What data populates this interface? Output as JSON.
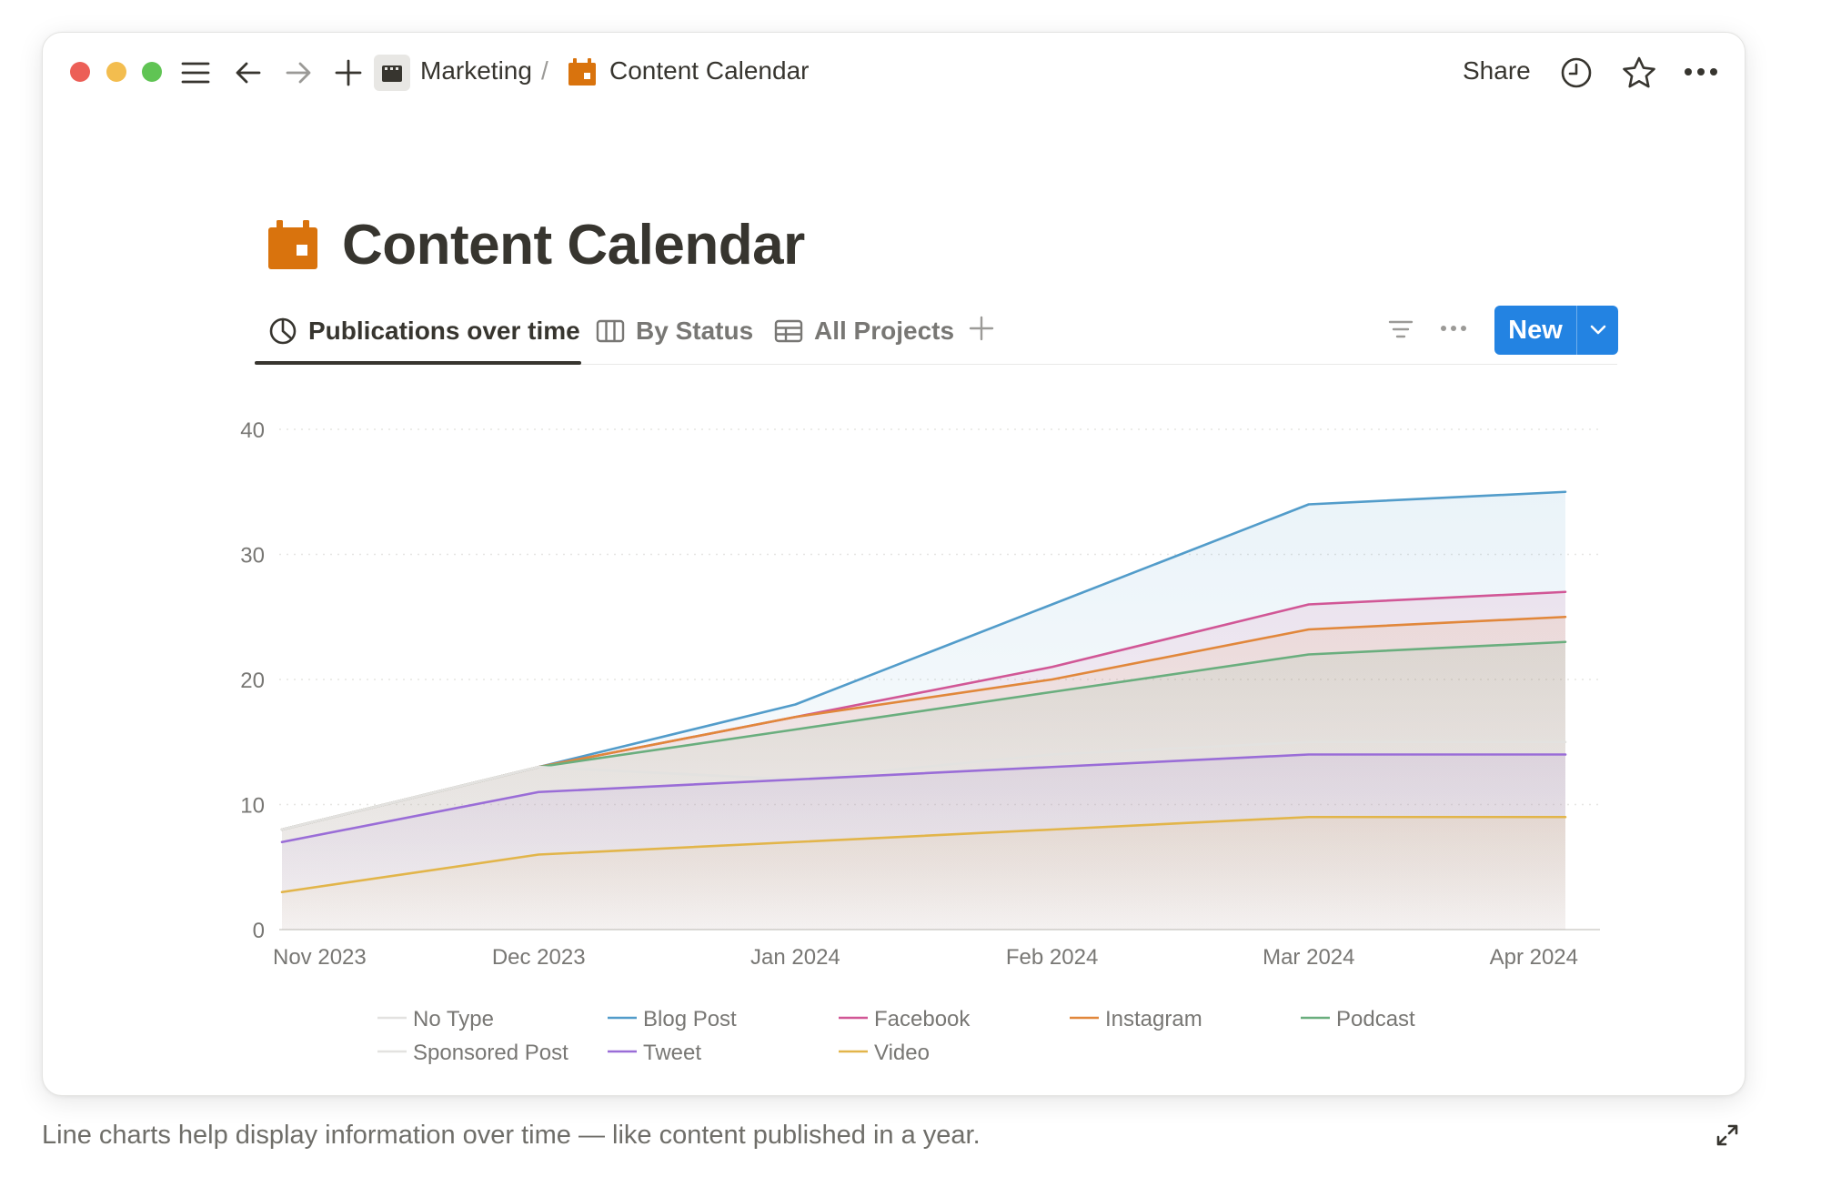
{
  "titlebar": {
    "breadcrumb_parent": "Marketing",
    "breadcrumb_separator": "/",
    "breadcrumb_current": "Content Calendar",
    "share_label": "Share"
  },
  "page": {
    "title": "Content Calendar",
    "icon_color": "#d9730d"
  },
  "tabs": [
    {
      "label": "Publications over time",
      "icon": "chart-clock-icon",
      "active": true
    },
    {
      "label": "By Status",
      "icon": "board-icon",
      "active": false
    },
    {
      "label": "All Projects",
      "icon": "table-icon",
      "active": false
    }
  ],
  "toolbar": {
    "new_label": "New",
    "accent": "#2383e2"
  },
  "chart_data": {
    "type": "area",
    "stacked": false,
    "x": [
      "Nov 2023",
      "Dec 2023",
      "Jan 2024",
      "Feb 2024",
      "Mar 2024",
      "Apr 2024"
    ],
    "ylim": [
      0,
      40
    ],
    "yticks": [
      0,
      10,
      20,
      30,
      40
    ],
    "grid": true,
    "legend_position": "bottom",
    "series": [
      {
        "name": "No Type",
        "color": "#e3e2e0",
        "values": [
          8,
          13,
          12,
          14,
          15,
          15
        ]
      },
      {
        "name": "Blog Post",
        "color": "#529cca",
        "values": [
          8,
          13,
          18,
          26,
          34,
          35
        ]
      },
      {
        "name": "Facebook",
        "color": "#d15796",
        "values": [
          8,
          13,
          17,
          21,
          26,
          27
        ]
      },
      {
        "name": "Instagram",
        "color": "#e1873b",
        "values": [
          8,
          13,
          17,
          20,
          24,
          25
        ]
      },
      {
        "name": "Podcast",
        "color": "#6aae7e",
        "values": [
          8,
          13,
          16,
          19,
          22,
          23
        ]
      },
      {
        "name": "Sponsored Post",
        "color": "#e3e2e0",
        "values": [
          8,
          13,
          12,
          13,
          14,
          14
        ]
      },
      {
        "name": "Tweet",
        "color": "#9a6dd7",
        "values": [
          7,
          11,
          12,
          13,
          14,
          14
        ]
      },
      {
        "name": "Video",
        "color": "#e2b54a",
        "values": [
          3,
          6,
          7,
          8,
          9,
          9
        ]
      }
    ]
  },
  "caption": "Line charts help display information over time — like content published in a year."
}
